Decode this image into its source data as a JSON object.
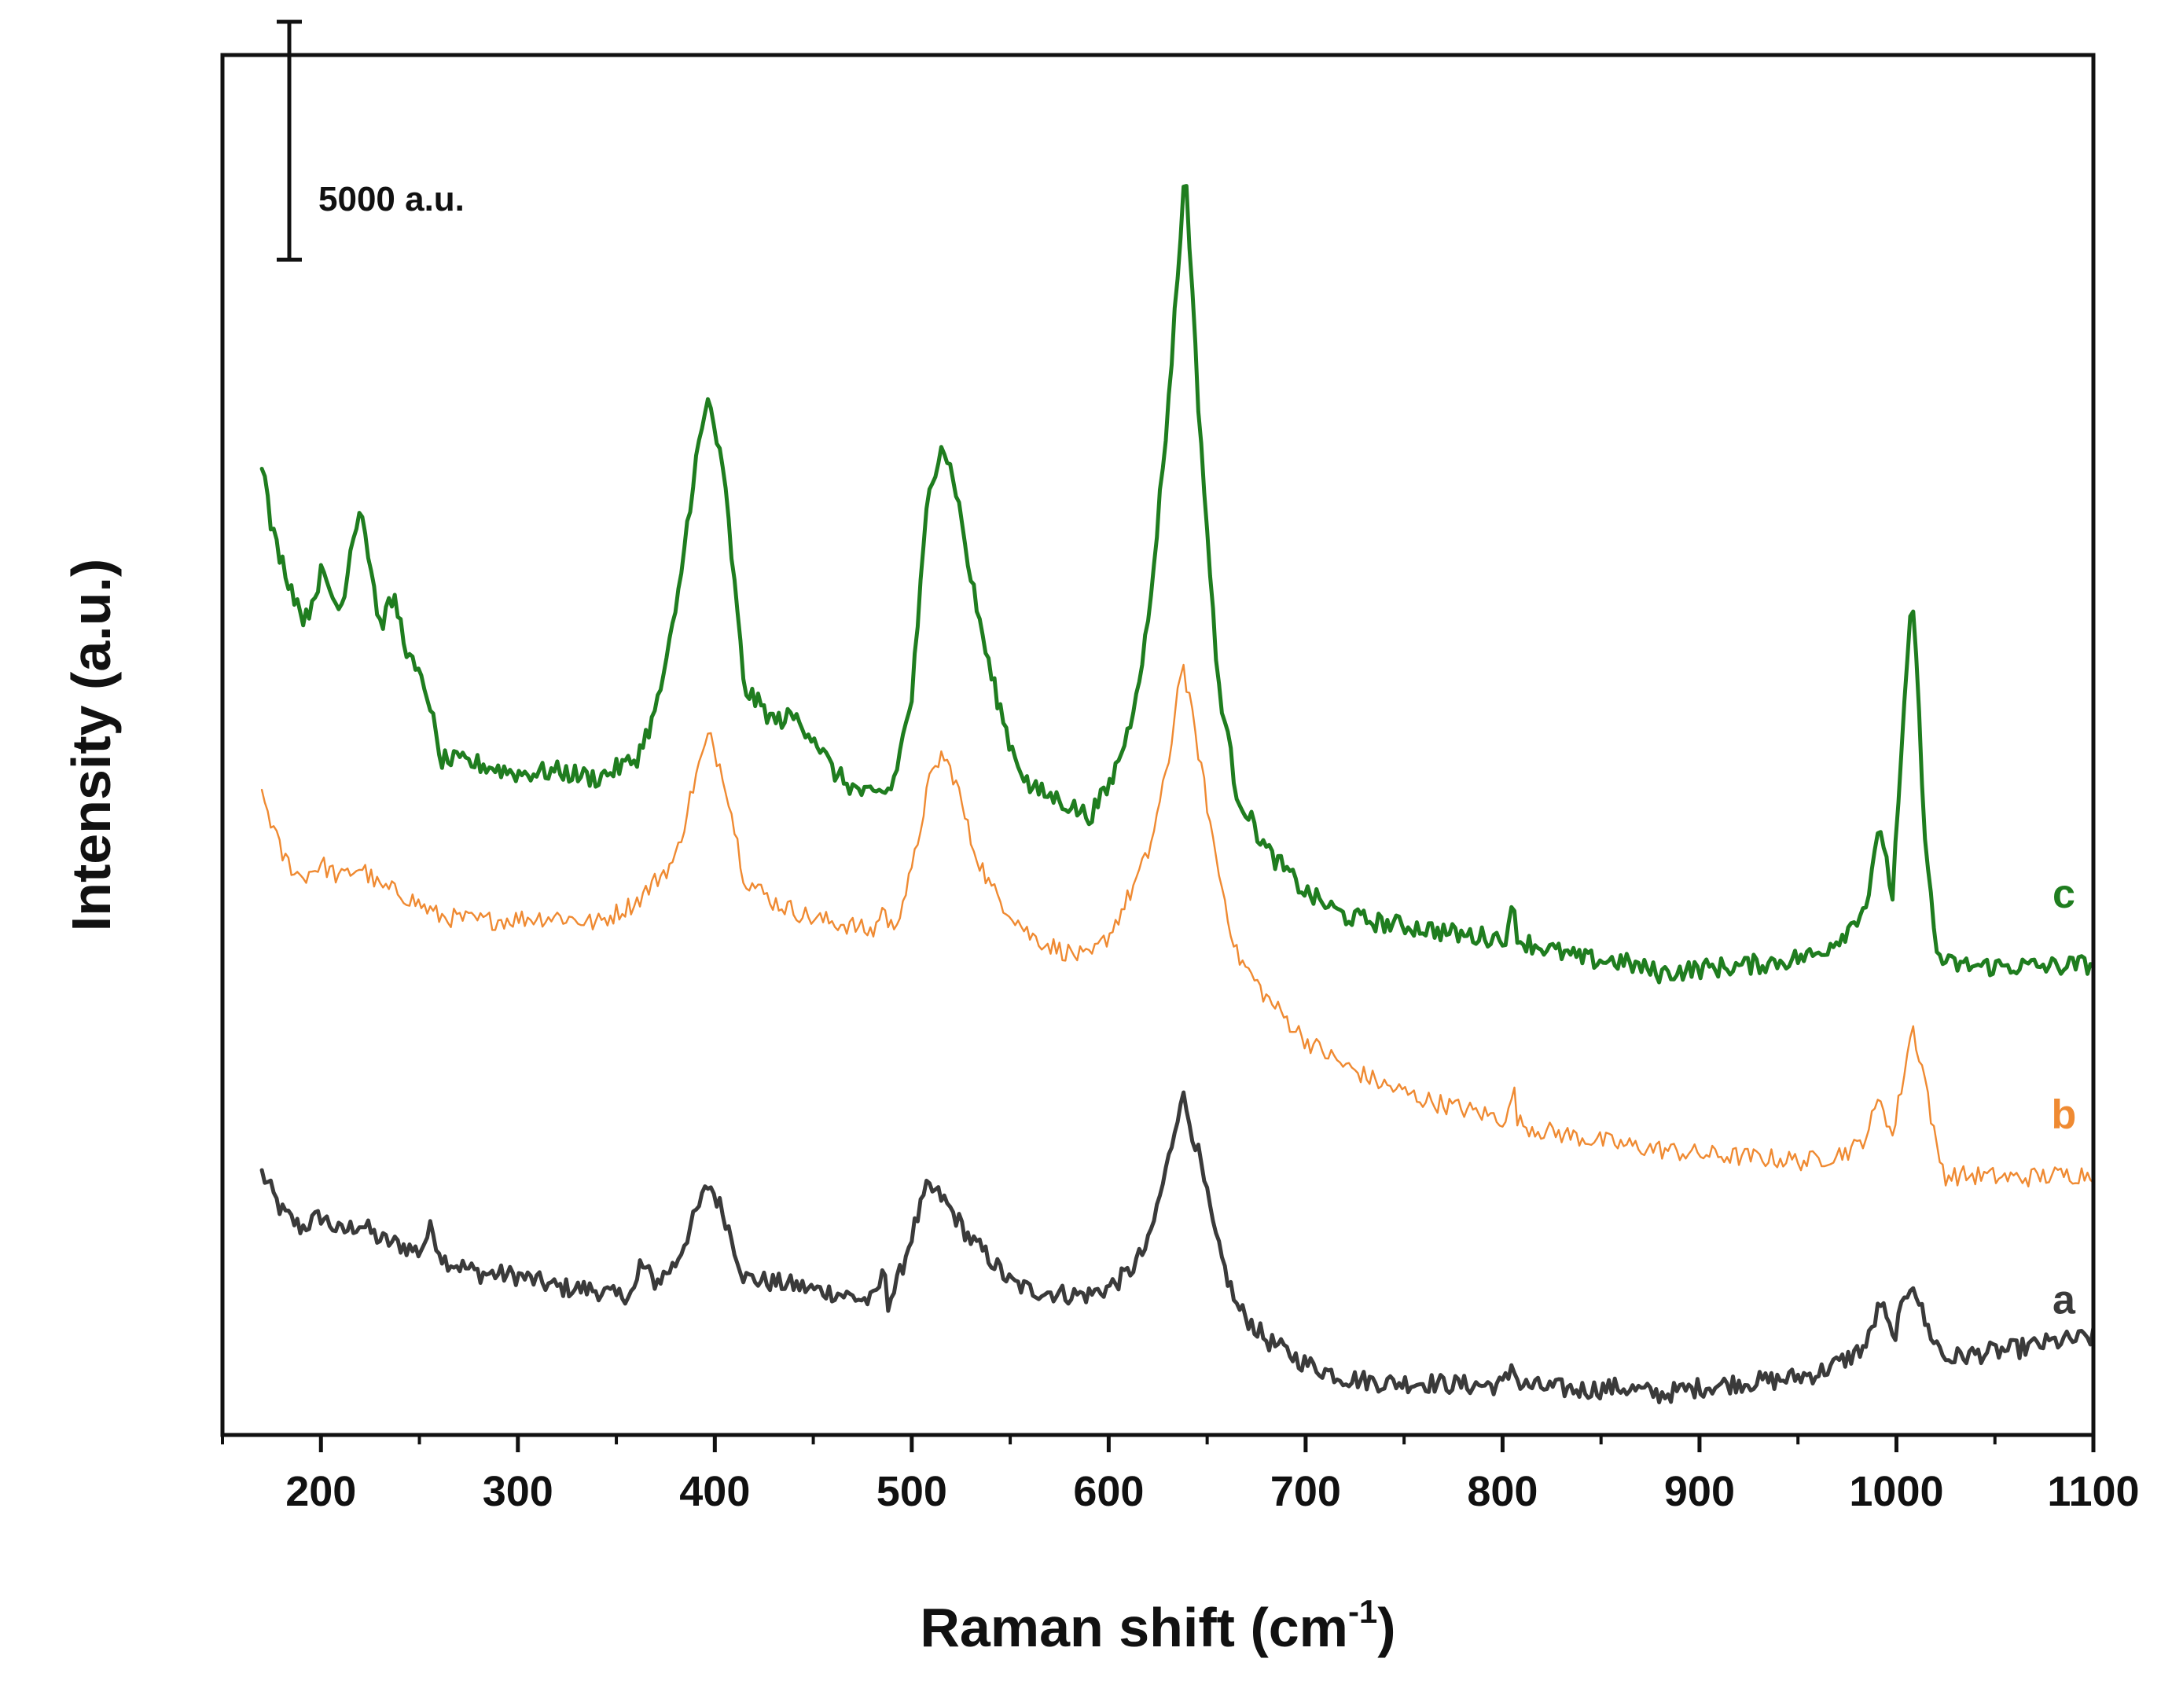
{
  "chart_data": {
    "type": "line",
    "title": "",
    "xlabel": "Raman shift (cm",
    "xlabel_sup": "-1",
    "xlabel_close": ")",
    "ylabel": "Intensity (a.u.)",
    "xlim": [
      150,
      1100
    ],
    "x_ticks": [
      200,
      300,
      400,
      500,
      600,
      700,
      800,
      900,
      1000,
      1100
    ],
    "x_tick_labels": [
      "200",
      "300",
      "400",
      "500",
      "600",
      "700",
      "800",
      "900",
      "1000",
      "1100"
    ],
    "y_ticks_shown": false,
    "ylim": [
      0,
      29000
    ],
    "scale_bar": {
      "value": 5000,
      "label": "5000 a.u.",
      "bottom": 24700
    },
    "series": [
      {
        "name": "a",
        "label": "a",
        "color": "#3a3a3a",
        "line": "thick",
        "label_x": 1085,
        "label_y": 2550,
        "x": [
          170,
          180,
          190,
          200,
          210,
          220,
          230,
          240,
          250,
          256,
          262,
          280,
          300,
          320,
          340,
          350,
          360,
          362,
          370,
          380,
          390,
          397,
          405,
          415,
          430,
          440,
          450,
          460,
          470,
          480,
          487,
          488,
          492,
          500,
          508,
          515,
          522,
          530,
          540,
          550,
          560,
          570,
          580,
          590,
          600,
          610,
          620,
          630,
          637,
          645,
          655,
          665,
          680,
          700,
          720,
          740,
          760,
          780,
          800,
          804,
          805,
          808,
          820,
          840,
          860,
          880,
          900,
          920,
          940,
          960,
          975,
          985,
          992,
          998,
          1008,
          1015,
          1025,
          1040,
          1060,
          1080,
          1100
        ],
        "y": [
          5500,
          4700,
          4350,
          4600,
          4250,
          4450,
          4100,
          4000,
          3850,
          4350,
          3700,
          3400,
          3350,
          3100,
          3050,
          2900,
          3050,
          3600,
          3200,
          3600,
          4600,
          5300,
          4600,
          3300,
          3200,
          3150,
          3050,
          3000,
          2900,
          2800,
          3500,
          2800,
          3100,
          4200,
          5200,
          5000,
          4600,
          4100,
          3700,
          3200,
          3050,
          3000,
          2950,
          2950,
          3100,
          3400,
          4000,
          5700,
          7200,
          6000,
          4000,
          2700,
          2000,
          1500,
          1200,
          1100,
          1100,
          1050,
          1050,
          1300,
          1650,
          1050,
          1000,
          950,
          1000,
          850,
          1000,
          1100,
          1150,
          1300,
          1600,
          1900,
          2800,
          2000,
          3300,
          2300,
          1600,
          1700,
          1800,
          1950,
          2050
        ]
      },
      {
        "name": "b",
        "label": "b",
        "color": "#ef8a32",
        "line": "thin",
        "label_x": 1085,
        "label_y": 6450,
        "x": [
          170,
          180,
          190,
          200,
          210,
          220,
          230,
          240,
          260,
          280,
          300,
          320,
          340,
          360,
          380,
          390,
          397,
          405,
          415,
          430,
          450,
          470,
          480,
          487,
          488,
          492,
          500,
          508,
          515,
          522,
          530,
          540,
          560,
          575,
          590,
          600,
          610,
          620,
          630,
          637,
          645,
          655,
          665,
          680,
          700,
          720,
          740,
          760,
          780,
          800,
          804,
          805,
          808,
          820,
          840,
          860,
          880,
          900,
          920,
          940,
          955,
          970,
          980,
          985,
          992,
          998,
          1008,
          1015,
          1020,
          1025,
          1040,
          1060,
          1080,
          1100
        ],
        "y": [
          13500,
          12200,
          11700,
          12000,
          11700,
          11950,
          11500,
          11400,
          10900,
          10800,
          10850,
          10900,
          10750,
          11200,
          12100,
          13800,
          14700,
          13800,
          11700,
          11200,
          10850,
          10700,
          10550,
          11200,
          10600,
          10800,
          11800,
          13600,
          14300,
          13800,
          12500,
          11500,
          10500,
          10200,
          10000,
          10500,
          11300,
          12200,
          14000,
          16300,
          14500,
          12000,
          10100,
          9200,
          8300,
          7750,
          7350,
          7050,
          6850,
          6650,
          6750,
          7450,
          6550,
          6400,
          6250,
          6100,
          6000,
          5900,
          5850,
          5800,
          5750,
          5900,
          6050,
          6350,
          7100,
          6250,
          8600,
          7400,
          6050,
          5450,
          5450,
          5400,
          5450,
          5500
        ]
      },
      {
        "name": "c",
        "label": "c",
        "color": "#1f7d1f",
        "line": "thick",
        "label_x": 1085,
        "label_y": 11080,
        "x": [
          170,
          175,
          185,
          192,
          200,
          210,
          215,
          220,
          230,
          237,
          245,
          255,
          260,
          280,
          300,
          320,
          340,
          360,
          370,
          380,
          390,
          397,
          405,
          415,
          430,
          440,
          450,
          460,
          470,
          480,
          490,
          500,
          508,
          515,
          522,
          530,
          540,
          550,
          560,
          575,
          590,
          600,
          610,
          620,
          630,
          639,
          645,
          655,
          665,
          680,
          700,
          720,
          740,
          760,
          780,
          800,
          804,
          805,
          808,
          820,
          840,
          860,
          880,
          900,
          920,
          940,
          960,
          975,
          985,
          992,
          998,
          1008,
          1015,
          1020,
          1025,
          1040,
          1060,
          1080,
          1100
        ],
        "y": [
          20500,
          19000,
          17800,
          17100,
          18100,
          17300,
          18600,
          19600,
          17000,
          17600,
          16300,
          15500,
          14200,
          14100,
          13900,
          13950,
          13800,
          14200,
          15200,
          17200,
          20400,
          21800,
          20000,
          15700,
          15000,
          15100,
          14700,
          13950,
          13600,
          13400,
          13600,
          15500,
          19600,
          20900,
          20000,
          18000,
          16000,
          14500,
          13600,
          13350,
          13000,
          13600,
          14800,
          17000,
          21500,
          26700,
          22000,
          16000,
          13500,
          12300,
          11400,
          10900,
          10750,
          10650,
          10500,
          10450,
          10600,
          11300,
          10400,
          10250,
          10000,
          9950,
          9700,
          9800,
          9850,
          9950,
          10100,
          10600,
          11200,
          12800,
          11300,
          17800,
          12300,
          10200,
          9900,
          9850,
          9850,
          9850,
          9900
        ]
      }
    ]
  }
}
